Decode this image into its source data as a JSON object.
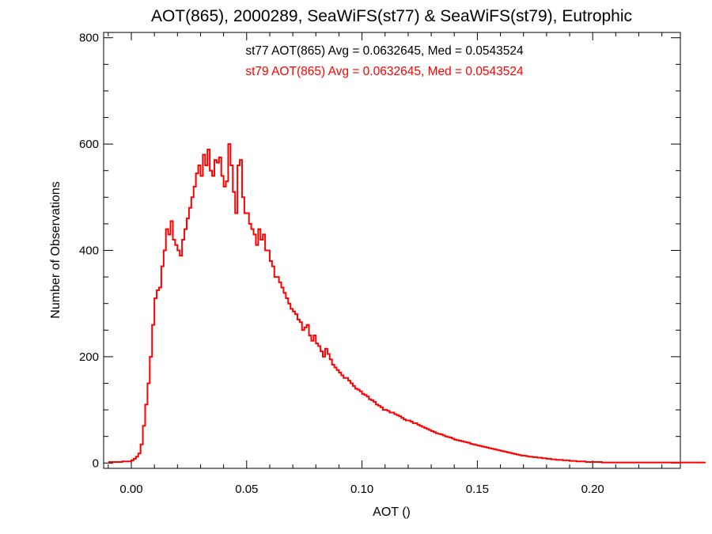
{
  "chart_data": {
    "type": "histogram",
    "title": "AOT(865), 2000289, SeaWiFS(st77) & SeaWiFS(st79), Eutrophic",
    "xlabel": "AOT ()",
    "ylabel": "Number of Observations",
    "xlim": [
      -0.012,
      0.238
    ],
    "ylim": [
      -10,
      810
    ],
    "x_ticks": [
      0.0,
      0.05,
      0.1,
      0.15,
      0.2
    ],
    "x_tick_labels": [
      "0.00",
      "0.05",
      "0.10",
      "0.15",
      "0.20"
    ],
    "y_ticks": [
      0,
      200,
      400,
      600,
      800
    ],
    "y_tick_labels": [
      "0",
      "200",
      "400",
      "600",
      "800"
    ],
    "annotations": [
      {
        "text": "st77 AOT(865) Avg = 0.0632645, Med = 0.0543524",
        "color": "#000000"
      },
      {
        "text": "st79 AOT(865) Avg = 0.0632645, Med = 0.0543524",
        "color": "#ff0000"
      }
    ],
    "grid": false,
    "bin_width": 0.001,
    "x_start": -0.01,
    "series": [
      {
        "name": "st79",
        "color": "#ff0000",
        "values": [
          2,
          2,
          2,
          2,
          2,
          2,
          3,
          3,
          3,
          3,
          5,
          8,
          12,
          18,
          35,
          70,
          110,
          150,
          200,
          260,
          310,
          325,
          330,
          370,
          400,
          440,
          430,
          455,
          420,
          410,
          400,
          390,
          420,
          440,
          460,
          480,
          500,
          520,
          545,
          560,
          540,
          580,
          560,
          590,
          550,
          540,
          570,
          565,
          575,
          540,
          520,
          530,
          600,
          560,
          510,
          470,
          560,
          570,
          500,
          470,
          470,
          450,
          440,
          430,
          410,
          440,
          420,
          430,
          400,
          400,
          380,
          370,
          350,
          350,
          340,
          330,
          320,
          310,
          300,
          290,
          285,
          280,
          270,
          265,
          250,
          255,
          260,
          240,
          230,
          240,
          225,
          220,
          210,
          200,
          215,
          205,
          195,
          185,
          180,
          175,
          170,
          165,
          160,
          160,
          155,
          150,
          145,
          140,
          138,
          135,
          130,
          128,
          125,
          120,
          118,
          115,
          110,
          108,
          105,
          100,
          100,
          98,
          95,
          95,
          92,
          90,
          88,
          85,
          82,
          80,
          80,
          78,
          75,
          75,
          72,
          70,
          68,
          66,
          64,
          62,
          60,
          58,
          56,
          55,
          54,
          52,
          50,
          49,
          48,
          46,
          44,
          43,
          42,
          41,
          40,
          39,
          38,
          36,
          35,
          34,
          33,
          32,
          31,
          30,
          29,
          28,
          27,
          26,
          25,
          24,
          23,
          22,
          21,
          20,
          19,
          18,
          17,
          16,
          15,
          14,
          14,
          13,
          12,
          12,
          11,
          11,
          10,
          10,
          9,
          9,
          8,
          8,
          7,
          7,
          6,
          6,
          6,
          5,
          5,
          5,
          4,
          4,
          4,
          3,
          3,
          3,
          3,
          2,
          2,
          2,
          2,
          2,
          2,
          2,
          1,
          1,
          1,
          1,
          1,
          1,
          1,
          1,
          1,
          1,
          1,
          1,
          1,
          1,
          1,
          1,
          1,
          1,
          1,
          1,
          1,
          1,
          1,
          1,
          1,
          1,
          1,
          1,
          1,
          1,
          1,
          1,
          1,
          1,
          1,
          1,
          1,
          1,
          1,
          1,
          1,
          1,
          1,
          1,
          1
        ]
      }
    ]
  }
}
